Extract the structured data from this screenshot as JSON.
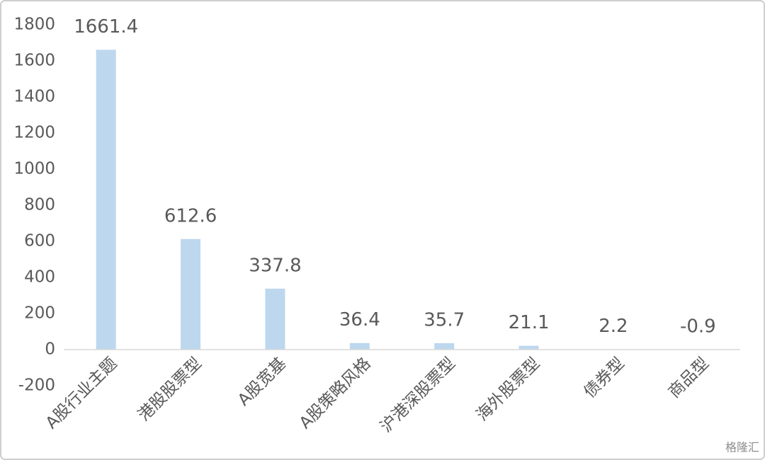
{
  "chart_data": {
    "type": "bar",
    "categories": [
      "A股行业主题",
      "港股股票型",
      "A股宽基",
      "A股策略风格",
      "沪港深股票型",
      "海外股票型",
      "债券型",
      "商品型"
    ],
    "values": [
      1661.4,
      612.6,
      337.8,
      36.4,
      35.7,
      21.1,
      2.2,
      -0.9
    ],
    "color": "#bdd7ee",
    "ylim": [
      -200,
      1800
    ],
    "yticks": [
      -200,
      0,
      200,
      400,
      600,
      800,
      1000,
      1200,
      1400,
      1600,
      1800
    ],
    "grid": false
  },
  "watermark": "格隆汇"
}
